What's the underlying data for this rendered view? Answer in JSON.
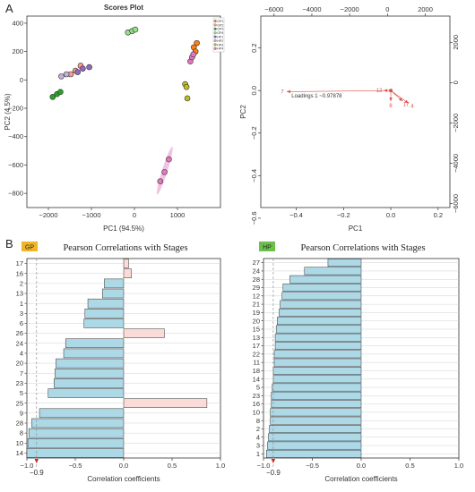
{
  "panel_labels": {
    "a": "A",
    "b": "B"
  },
  "chart_data": [
    {
      "id": "scores",
      "type": "scatter",
      "title": "Scores Plot",
      "xlabel": "PC1 (94.5%)",
      "ylabel": "PC2 (4.5%)",
      "xlim": [
        -2500,
        2000
      ],
      "ylim": [
        -900,
        450
      ],
      "xticks": [
        -2000,
        -1000,
        0,
        1000
      ],
      "yticks": [
        -800,
        -600,
        -400,
        -200,
        0,
        200,
        400
      ],
      "legend": [
        "GP1",
        "GP2",
        "GP3",
        "GP4",
        "HP1",
        "HP2",
        "HP3",
        "HP4"
      ],
      "legend_position": "top-right",
      "series": [
        {
          "name": "GP1",
          "color": "#ff7f0e",
          "x": [
            1380,
            1450,
            1420
          ],
          "y": [
            230,
            260,
            200
          ]
        },
        {
          "name": "GP2",
          "color": "#ff9896",
          "x": [
            -1480,
            -1370,
            -1250
          ],
          "y": [
            40,
            65,
            100
          ]
        },
        {
          "name": "GP3",
          "color": "#2ca02c",
          "x": [
            -1900,
            -1800,
            -1720
          ],
          "y": [
            -120,
            -100,
            -85
          ]
        },
        {
          "name": "GP4",
          "color": "#98df8a",
          "x": [
            -150,
            -50,
            20
          ],
          "y": [
            335,
            345,
            355
          ]
        },
        {
          "name": "HP1",
          "color": "#9467bd",
          "x": [
            -1320,
            -1200,
            -1050
          ],
          "y": [
            55,
            80,
            90
          ]
        },
        {
          "name": "HP2",
          "color": "#c5b0d5",
          "x": [
            -1700,
            -1580
          ],
          "y": [
            25,
            40
          ]
        },
        {
          "name": "HP3",
          "color": "#bcbd22",
          "x": [
            1180,
            1210,
            1230
          ],
          "y": [
            -30,
            -50,
            -130
          ]
        },
        {
          "name": "HP4",
          "color": "#e377c2",
          "x": [
            600,
            700,
            800,
            1300,
            1340,
            1370
          ],
          "y": [
            -715,
            -650,
            -560,
            130,
            160,
            180
          ]
        }
      ],
      "ellipse_color": "#e377c2"
    },
    {
      "id": "loadings",
      "type": "scatter",
      "xlabel": "PC1",
      "ylabel": "PC2",
      "xlim": [
        -0.55,
        0.25
      ],
      "ylim": [
        -0.55,
        0.35
      ],
      "xticks": [
        -0.4,
        -0.2,
        0.0,
        0.2
      ],
      "yticks": [
        -0.6,
        -0.4,
        -0.2,
        0.0,
        0.2
      ],
      "top_xlim": [
        -6700,
        3300
      ],
      "top_xticks": [
        -6000,
        -4000,
        -2000,
        0,
        2000
      ],
      "right_ylim": [
        -6200,
        3300
      ],
      "right_yticks": [
        -6000,
        -4000,
        -2000,
        0,
        2000
      ],
      "annotation": "Loadings 1 ~0.97878",
      "vectors": [
        {
          "label": "7",
          "x": -0.44,
          "y": -0.005
        },
        {
          "label": "12",
          "x": -0.03,
          "y": 0.0
        },
        {
          "label": "8",
          "x": 0.0,
          "y": -0.05
        },
        {
          "label": "17",
          "x": 0.05,
          "y": -0.05
        },
        {
          "label": "4",
          "x": 0.075,
          "y": -0.06
        }
      ],
      "vector_color": "#d9534f"
    },
    {
      "id": "gp_corr",
      "type": "bar",
      "badge": "GP",
      "badge_color": "#f0b429",
      "title": "Pearson Correlations with Stages",
      "xlabel": "Correlation coefficients",
      "xlim": [
        -1.0,
        1.0
      ],
      "xticks": [
        -1.0,
        -0.5,
        0.0,
        0.5,
        1.0
      ],
      "threshold": -0.9,
      "categories": [
        "17",
        "16",
        "2",
        "13",
        "1",
        "3",
        "6",
        "26",
        "24",
        "4",
        "20",
        "7",
        "23",
        "5",
        "25",
        "9",
        "28",
        "8",
        "10",
        "14"
      ],
      "values": [
        0.05,
        0.08,
        -0.2,
        -0.22,
        -0.37,
        -0.4,
        -0.41,
        0.42,
        -0.6,
        -0.62,
        -0.7,
        -0.71,
        -0.72,
        -0.78,
        0.86,
        -0.87,
        -0.95,
        -0.98,
        -0.99,
        -1.0
      ],
      "neg_color": "#add8e6",
      "pos_color": "#fadbd8"
    },
    {
      "id": "hp_corr",
      "type": "bar",
      "badge": "HP",
      "badge_color": "#6cc04a",
      "title": "Pearson Correlations with Stages",
      "xlabel": "Correlation coefficients",
      "xlim": [
        -1.0,
        1.0
      ],
      "xticks": [
        -1.0,
        -0.5,
        0.0,
        0.5,
        1.0
      ],
      "threshold": -0.9,
      "categories": [
        "27",
        "24",
        "28",
        "29",
        "12",
        "21",
        "19",
        "20",
        "15",
        "13",
        "17",
        "22",
        "11",
        "18",
        "14",
        "5",
        "23",
        "16",
        "10",
        "8",
        "2",
        "4",
        "3",
        "1"
      ],
      "values": [
        -0.34,
        -0.58,
        -0.73,
        -0.8,
        -0.81,
        -0.83,
        -0.84,
        -0.86,
        -0.87,
        -0.88,
        -0.88,
        -0.89,
        -0.89,
        -0.9,
        -0.9,
        -0.91,
        -0.92,
        -0.92,
        -0.93,
        -0.93,
        -0.94,
        -0.95,
        -0.96,
        -0.97
      ],
      "neg_color": "#add8e6",
      "pos_color": "#fadbd8"
    }
  ]
}
